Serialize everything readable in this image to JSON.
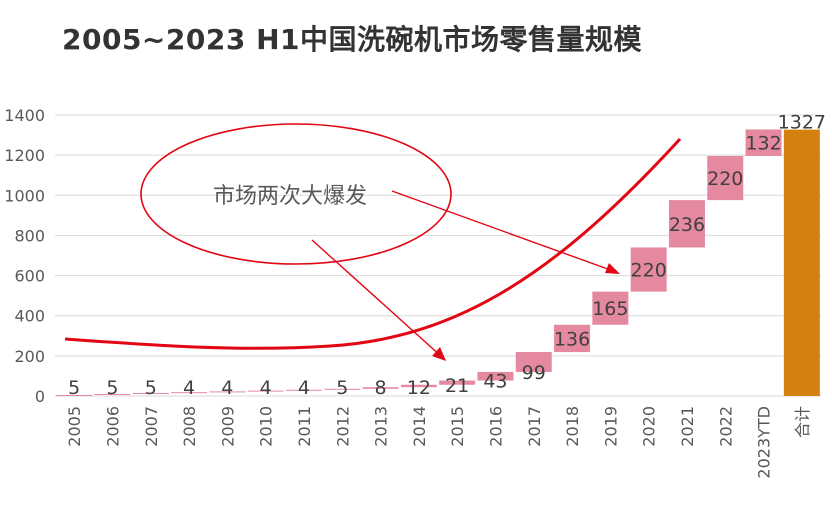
{
  "chart_data": {
    "type": "bar",
    "subtype": "waterfall",
    "title": "2005~2023 H1中国洗碗机市场零售量规模",
    "xlabel": "",
    "ylabel": "",
    "ylim": [
      0,
      1400
    ],
    "yticks": [
      "0",
      "200",
      "400",
      "600",
      "800",
      "1000",
      "1200",
      "1400"
    ],
    "categories": [
      "2005",
      "2006",
      "2007",
      "2008",
      "2009",
      "2010",
      "2011",
      "2012",
      "2013",
      "2014",
      "2015",
      "2016",
      "2017",
      "2018",
      "2019",
      "2020",
      "2021",
      "2022",
      "2023YTD",
      "合计"
    ],
    "values": [
      5,
      5,
      5,
      4,
      4,
      4,
      4,
      5,
      8,
      12,
      21,
      43,
      99,
      136,
      165,
      220,
      236,
      220,
      132,
      1327
    ],
    "labels": [
      "5",
      "5",
      "5",
      "4",
      "4",
      "4",
      "4",
      "5",
      "8",
      "12",
      "21",
      "43",
      "99",
      "136",
      "165",
      "220",
      "236",
      "220",
      "132",
      "1327"
    ],
    "total_category": "合计",
    "grid": true,
    "legend": "none",
    "annotation": "市场两次大爆发",
    "colors": {
      "increment": "#E589A0",
      "total": "#D5800E",
      "annotation": "#E30613",
      "grid": "#D9D9D9"
    }
  }
}
